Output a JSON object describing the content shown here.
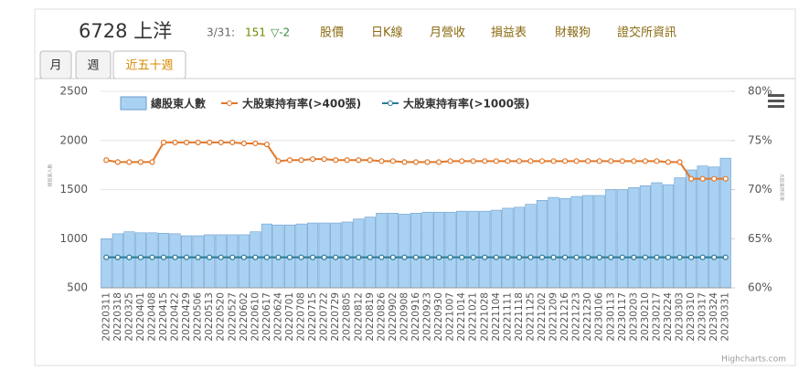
{
  "header": {
    "title": "6728 上洋",
    "date": "3/31:",
    "price": "151",
    "change": "▽-2",
    "nav": [
      "股價",
      "日K線",
      "月營收",
      "損益表",
      "財報狗",
      "證交所資訊"
    ]
  },
  "tabs": [
    "月",
    "週",
    "近五十週"
  ],
  "credit": "Highcharts.com",
  "chart_data": {
    "type": "bar-line",
    "categories": [
      "20220311",
      "20220318",
      "20220325",
      "20220401",
      "20220408",
      "20220415",
      "20220422",
      "20220429",
      "20220506",
      "20220513",
      "20220520",
      "20220527",
      "20220602",
      "20220610",
      "20220617",
      "20220624",
      "20220701",
      "20220708",
      "20220715",
      "20220722",
      "20220729",
      "20220805",
      "20220812",
      "20220819",
      "20220826",
      "20220902",
      "20220908",
      "20220916",
      "20220923",
      "20220930",
      "20221007",
      "20221014",
      "20221021",
      "20221028",
      "20221104",
      "20221111",
      "20221118",
      "20221125",
      "20221202",
      "20221209",
      "20221216",
      "20221223",
      "20221230",
      "20230106",
      "20230113",
      "20230117",
      "20230203",
      "20230210",
      "20230217",
      "20230224",
      "20230303",
      "20230310",
      "20230317",
      "20230324",
      "20230331"
    ],
    "series": [
      {
        "name": "總股東人數",
        "color": "#a9d1f2",
        "values": [
          1000,
          1050,
          1070,
          1060,
          1060,
          1055,
          1050,
          1030,
          1030,
          1040,
          1040,
          1040,
          1040,
          1070,
          1150,
          1140,
          1140,
          1150,
          1160,
          1160,
          1160,
          1170,
          1200,
          1220,
          1260,
          1260,
          1250,
          1260,
          1270,
          1270,
          1270,
          1280,
          1280,
          1280,
          1290,
          1310,
          1320,
          1350,
          1390,
          1420,
          1410,
          1430,
          1440,
          1440,
          1500,
          1500,
          1520,
          1540,
          1570,
          1550,
          1620,
          1700,
          1740,
          1730,
          1820
        ]
      },
      {
        "name": "大股東持有率(>400張)",
        "color": "#e0782a",
        "axis": "y2",
        "values": [
          73.0,
          72.8,
          72.8,
          72.8,
          72.8,
          74.8,
          74.8,
          74.8,
          74.8,
          74.8,
          74.8,
          74.8,
          74.7,
          74.7,
          74.6,
          72.9,
          73.0,
          73.0,
          73.1,
          73.1,
          73.0,
          73.0,
          73.0,
          73.0,
          72.9,
          72.9,
          72.8,
          72.8,
          72.8,
          72.8,
          72.9,
          72.9,
          72.9,
          72.9,
          72.9,
          72.9,
          72.9,
          72.9,
          72.9,
          72.9,
          72.9,
          72.9,
          72.9,
          72.9,
          72.9,
          72.9,
          72.9,
          72.9,
          72.9,
          72.8,
          72.8,
          71.1,
          71.1,
          71.1,
          71.1
        ]
      },
      {
        "name": "大股東持有率(>1000張)",
        "color": "#2a7a96",
        "axis": "y2",
        "values": [
          63.1,
          63.1,
          63.1,
          63.1,
          63.1,
          63.1,
          63.1,
          63.1,
          63.1,
          63.1,
          63.1,
          63.1,
          63.1,
          63.1,
          63.1,
          63.1,
          63.1,
          63.1,
          63.1,
          63.1,
          63.1,
          63.1,
          63.1,
          63.1,
          63.1,
          63.1,
          63.1,
          63.1,
          63.1,
          63.1,
          63.1,
          63.1,
          63.1,
          63.1,
          63.1,
          63.1,
          63.1,
          63.1,
          63.1,
          63.1,
          63.1,
          63.1,
          63.1,
          63.1,
          63.1,
          63.1,
          63.1,
          63.1,
          63.1,
          63.1,
          63.1,
          63.1,
          63.1,
          63.1,
          63.1
        ]
      }
    ],
    "ylabel": "總股東人數",
    "y2label": "大股東持有率",
    "ylim": [
      500,
      2500
    ],
    "yticks": [
      500,
      1000,
      1500,
      2000,
      2500
    ],
    "y2lim": [
      60,
      80
    ],
    "y2ticks": [
      {
        "value": 60,
        "label": "60%"
      },
      {
        "value": 65,
        "label": "65%"
      },
      {
        "value": 70,
        "label": "70%"
      },
      {
        "value": 75,
        "label": "75%"
      },
      {
        "value": 80,
        "label": "80%"
      }
    ],
    "grid": true,
    "legend": "top"
  }
}
